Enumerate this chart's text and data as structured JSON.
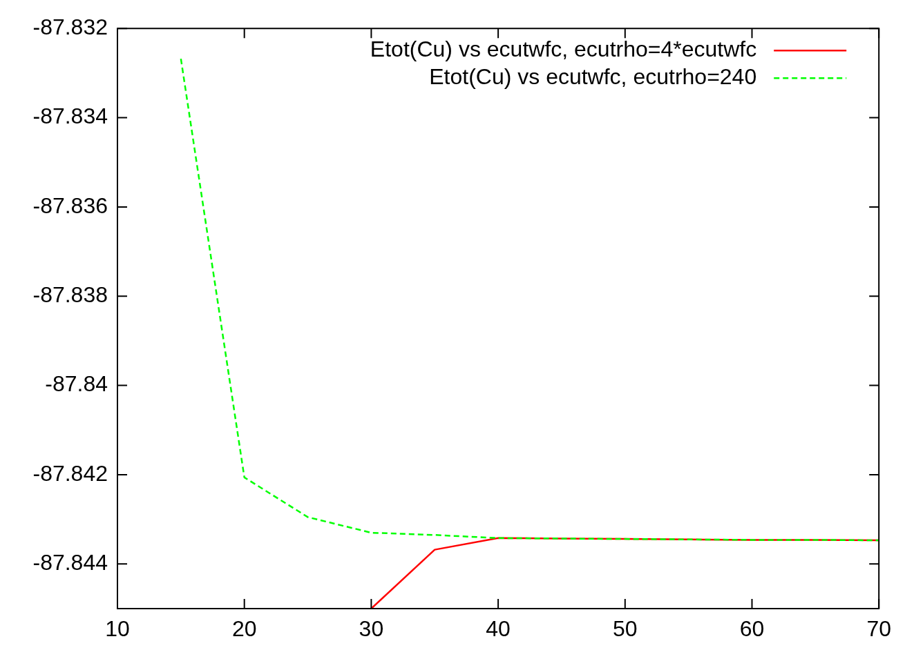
{
  "chart_data": {
    "type": "line",
    "x": [
      15,
      20,
      25,
      30,
      35,
      40,
      45,
      50,
      55,
      60,
      65,
      70
    ],
    "xlim": [
      10,
      70
    ],
    "xticks": [
      10,
      20,
      30,
      40,
      50,
      60,
      70
    ],
    "ylim": [
      -87.845,
      -87.832
    ],
    "yticks": [
      -87.844,
      -87.842,
      -87.84,
      -87.838,
      -87.836,
      -87.834,
      -87.832
    ],
    "grid": false,
    "legend": "top right",
    "marker": "none",
    "series": [
      {
        "name": "Etot(Cu) vs ecutwfc, ecutrho=4*ecutwfc",
        "color": "#ff0000",
        "line_style": "solid",
        "x": [
          30,
          35,
          40,
          45,
          50,
          55,
          60,
          65,
          70
        ],
        "values": [
          -87.845,
          -87.84368,
          -87.84342,
          -87.84343,
          -87.84344,
          -87.84345,
          -87.84346,
          -87.84346,
          -87.84347
        ]
      },
      {
        "name": "Etot(Cu) vs ecutwfc, ecutrho=240",
        "color": "#00ff00",
        "line_style": "dashed",
        "values": [
          -87.83268,
          -87.84206,
          -87.84295,
          -87.8433,
          -87.84335,
          -87.84342,
          -87.84343,
          -87.84344,
          -87.84345,
          -87.84346,
          -87.84346,
          -87.84347
        ]
      }
    ]
  }
}
